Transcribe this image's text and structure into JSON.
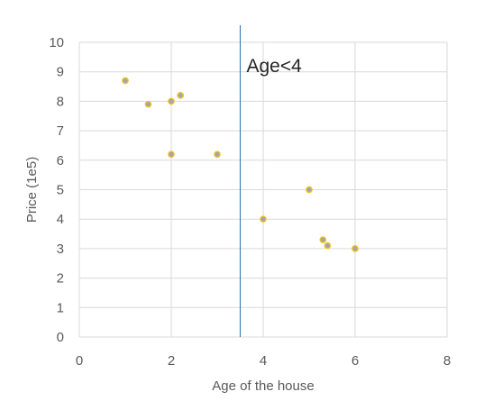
{
  "chart_data": {
    "type": "scatter",
    "title": "",
    "xlabel": "Age of the house",
    "ylabel": "Price (1e5)",
    "xlim": [
      0,
      8
    ],
    "ylim": [
      0,
      10
    ],
    "x_ticks": [
      "0",
      "2",
      "4",
      "6",
      "8"
    ],
    "y_ticks": [
      "0",
      "1",
      "2",
      "3",
      "4",
      "5",
      "6",
      "7",
      "8",
      "9",
      "10"
    ],
    "grid": true,
    "legend": "none",
    "series": [
      {
        "points": [
          {
            "x": 1.0,
            "y": 8.7
          },
          {
            "x": 1.5,
            "y": 7.9
          },
          {
            "x": 2.0,
            "y": 8.0
          },
          {
            "x": 2.2,
            "y": 8.2
          },
          {
            "x": 2.0,
            "y": 6.2
          },
          {
            "x": 3.0,
            "y": 6.2
          },
          {
            "x": 4.0,
            "y": 4.0
          },
          {
            "x": 5.0,
            "y": 5.0
          },
          {
            "x": 5.3,
            "y": 3.3
          },
          {
            "x": 5.4,
            "y": 3.1
          },
          {
            "x": 6.0,
            "y": 3.0
          }
        ]
      }
    ],
    "reference_line": {
      "x": 3.5,
      "label": "Age<4"
    },
    "colors": {
      "marker_fill": "#A5A5A5",
      "marker_stroke": "#F2C624",
      "reference_line": "#2E6DB4",
      "grid": "#D9D9D9",
      "tick_text": "#595959"
    }
  }
}
